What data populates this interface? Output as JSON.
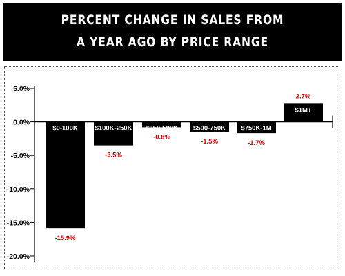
{
  "header": {
    "line1": "PERCENT CHANGE IN SALES FROM",
    "line2": "A YEAR AGO BY PRICE RANGE"
  },
  "colors": {
    "bar": "#000000",
    "value_label": "#d20000",
    "category_label": "#ffffff"
  },
  "chart_data": {
    "type": "bar",
    "title": "PERCENT CHANGE IN SALES FROM A YEAR AGO BY PRICE RANGE",
    "categories": [
      "$0-100K",
      "$100K-250K",
      "$250-500K",
      "$500-750K",
      "$750K-1M",
      "$1M+"
    ],
    "values": [
      -15.9,
      -3.5,
      -0.8,
      -1.5,
      -1.7,
      2.7
    ],
    "value_labels": [
      "-15.9%",
      "-3.5%",
      "-0.8%",
      "-1.5%",
      "-1.7%",
      "2.7%"
    ],
    "yticks": [
      5,
      0,
      -5,
      -10,
      -15,
      -20
    ],
    "ytick_labels": [
      "5.0%",
      "0.0%",
      "-5.0%",
      "-10.0%",
      "-15.0%",
      "-20.0%"
    ],
    "ylim": [
      -20,
      5
    ],
    "xlabel": "",
    "ylabel": "",
    "grid": false,
    "legend": "none"
  }
}
